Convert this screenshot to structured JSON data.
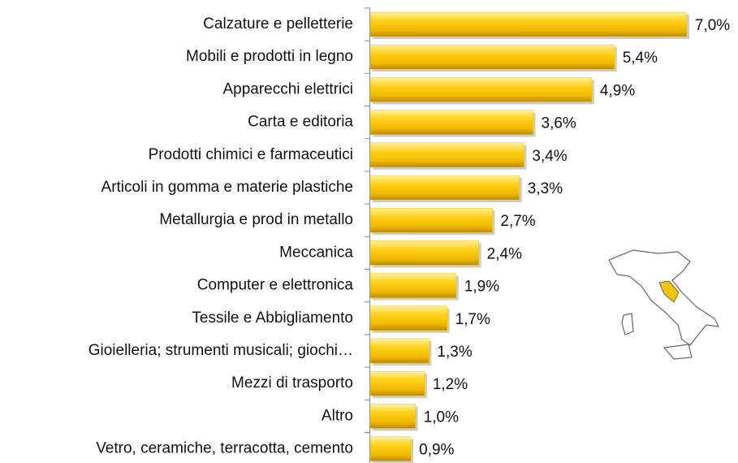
{
  "chart_data": {
    "type": "bar",
    "orientation": "horizontal",
    "categories": [
      "Calzature e pelletterie",
      "Mobili e prodotti in legno",
      "Apparecchi elettrici",
      "Carta e editoria",
      "Prodotti chimici e farmaceutici",
      "Articoli in gomma e materie plastiche",
      "Metallurgia e prod in metallo",
      "Meccanica",
      "Computer e elettronica",
      "Tessile e Abbigliamento",
      "Gioielleria; strumenti musicali; giochi…",
      "Mezzi di trasporto",
      "Altro",
      "Vetro, ceramiche, terracotta, cemento"
    ],
    "values": [
      7.0,
      5.4,
      4.9,
      3.6,
      3.4,
      3.3,
      2.7,
      2.4,
      1.9,
      1.7,
      1.3,
      1.2,
      1.0,
      0.9
    ],
    "value_labels": [
      "7,0%",
      "5,4%",
      "4,9%",
      "3,6%",
      "3,4%",
      "3,3%",
      "2,7%",
      "2,4%",
      "1,9%",
      "1,7%",
      "1,3%",
      "1,2%",
      "1,0%",
      "0,9%"
    ],
    "color": "#f5c400"
  }
}
